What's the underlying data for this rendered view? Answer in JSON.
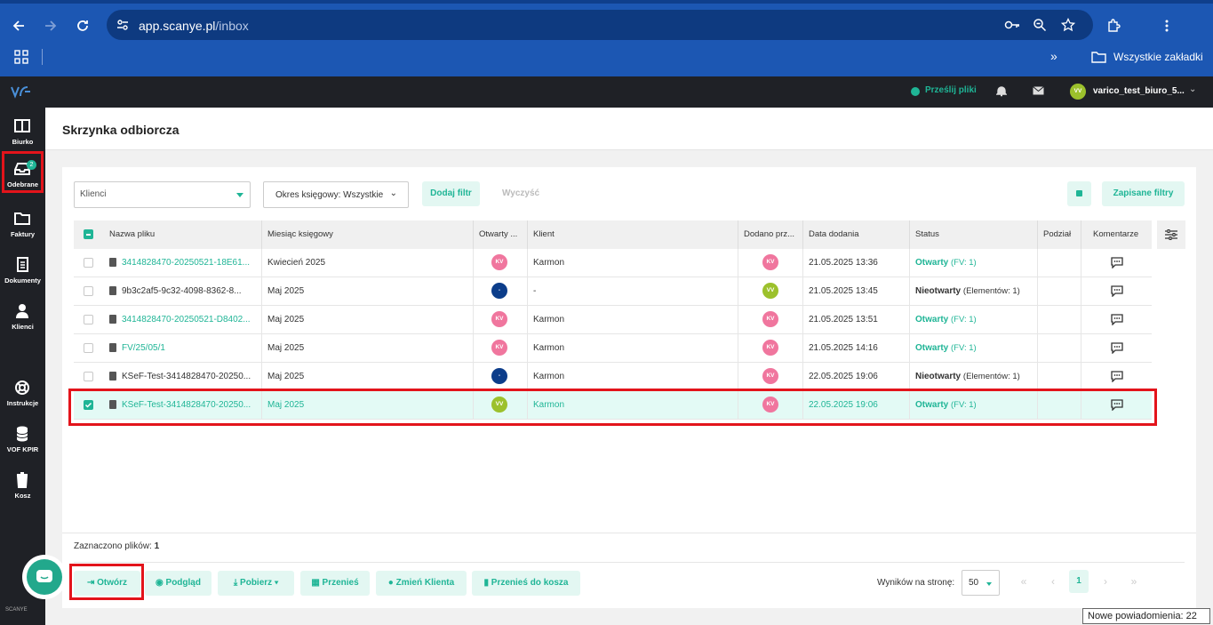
{
  "browser": {
    "url_host": "app.scanye.pl",
    "url_path": "/inbox",
    "bookmarks_all": "Wszystkie zakładki"
  },
  "header": {
    "upload_label": "Prześlij pliki",
    "user_initials": "VV",
    "user_name": "varico_test_biuro_5..."
  },
  "sidebar": {
    "items": [
      {
        "label": "Biurko",
        "icon": "desk-icon"
      },
      {
        "label": "Odebrane",
        "icon": "inbox-icon",
        "badge": "2"
      },
      {
        "label": "Faktury",
        "icon": "folder-icon"
      },
      {
        "label": "Dokumenty",
        "icon": "document-icon"
      },
      {
        "label": "Klienci",
        "icon": "user-icon"
      },
      {
        "label": "Instrukcje",
        "icon": "lifebuoy-icon"
      },
      {
        "label": "VOF KPIR",
        "icon": "database-icon"
      },
      {
        "label": "Kosz",
        "icon": "trash-icon"
      }
    ],
    "brand": "SCANYE"
  },
  "page": {
    "title": "Skrzynka odbiorcza"
  },
  "filters": {
    "client_placeholder": "Klienci",
    "period": "Okres księgowy: Wszystkie",
    "add_filter": "Dodaj filtr",
    "clear": "Wyczyść",
    "saved_filters": "Zapisane filtry"
  },
  "table": {
    "headers": [
      "Nazwa pliku",
      "Miesiąc księgowy",
      "Otwarty ...",
      "Klient",
      "Dodano prz...",
      "Data dodania",
      "Status",
      "Podział",
      "Komentarze"
    ],
    "rows": [
      {
        "name": "3414828470-20250521-18E61...",
        "name_link": true,
        "month": "Kwiecień 2025",
        "opened": "KV",
        "client": "Karmon",
        "added_by": "KV",
        "date": "21.05.2025 13:36",
        "status": "Otwarty",
        "status_detail": "(FV: 1)",
        "status_open": true,
        "selected": false
      },
      {
        "name": "9b3c2af5-9c32-4098-8362-8...",
        "name_link": false,
        "month": "Maj 2025",
        "opened": "-",
        "client": "-",
        "added_by": "VV",
        "date": "21.05.2025 13:45",
        "status": "Nieotwarty",
        "status_detail": "(Elementów: 1)",
        "status_open": false,
        "selected": false
      },
      {
        "name": "3414828470-20250521-D8402...",
        "name_link": true,
        "month": "Maj 2025",
        "opened": "KV",
        "client": "Karmon",
        "added_by": "KV",
        "date": "21.05.2025 13:51",
        "status": "Otwarty",
        "status_detail": "(FV: 1)",
        "status_open": true,
        "selected": false
      },
      {
        "name": "FV/25/05/1",
        "name_link": true,
        "month": "Maj 2025",
        "opened": "KV",
        "client": "Karmon",
        "added_by": "KV",
        "date": "21.05.2025 14:16",
        "status": "Otwarty",
        "status_detail": "(FV: 1)",
        "status_open": true,
        "selected": false
      },
      {
        "name": "KSeF-Test-3414828470-20250...",
        "name_link": false,
        "month": "Maj 2025",
        "opened": "-",
        "client": "Karmon",
        "added_by": "KV",
        "date": "22.05.2025 19:06",
        "status": "Nieotwarty",
        "status_detail": "(Elementów: 1)",
        "status_open": false,
        "selected": false
      },
      {
        "name": "KSeF-Test-3414828470-20250...",
        "name_link": true,
        "month": "Maj 2025",
        "opened": "VV",
        "client": "Karmon",
        "added_by": "KV",
        "date": "22.05.2025 19:06",
        "status": "Otwarty",
        "status_detail": "(FV: 1)",
        "status_open": true,
        "selected": true
      }
    ]
  },
  "footer": {
    "selected_label": "Zaznaczono plików:",
    "selected_count": "1",
    "actions": [
      "Otwórz",
      "Podgląd",
      "Pobierz",
      "Przenieś",
      "Zmień Klienta",
      "Przenieś do kosza"
    ],
    "per_page_label": "Wyników na stronę:",
    "per_page": "50",
    "current_page": "1"
  },
  "tooltip": "Nowe powiadomienia: 22",
  "colors": {
    "accent": "#1fb596",
    "browser": "#1c57b3",
    "dark": "#1f2126",
    "highlight": "#e3141b"
  }
}
